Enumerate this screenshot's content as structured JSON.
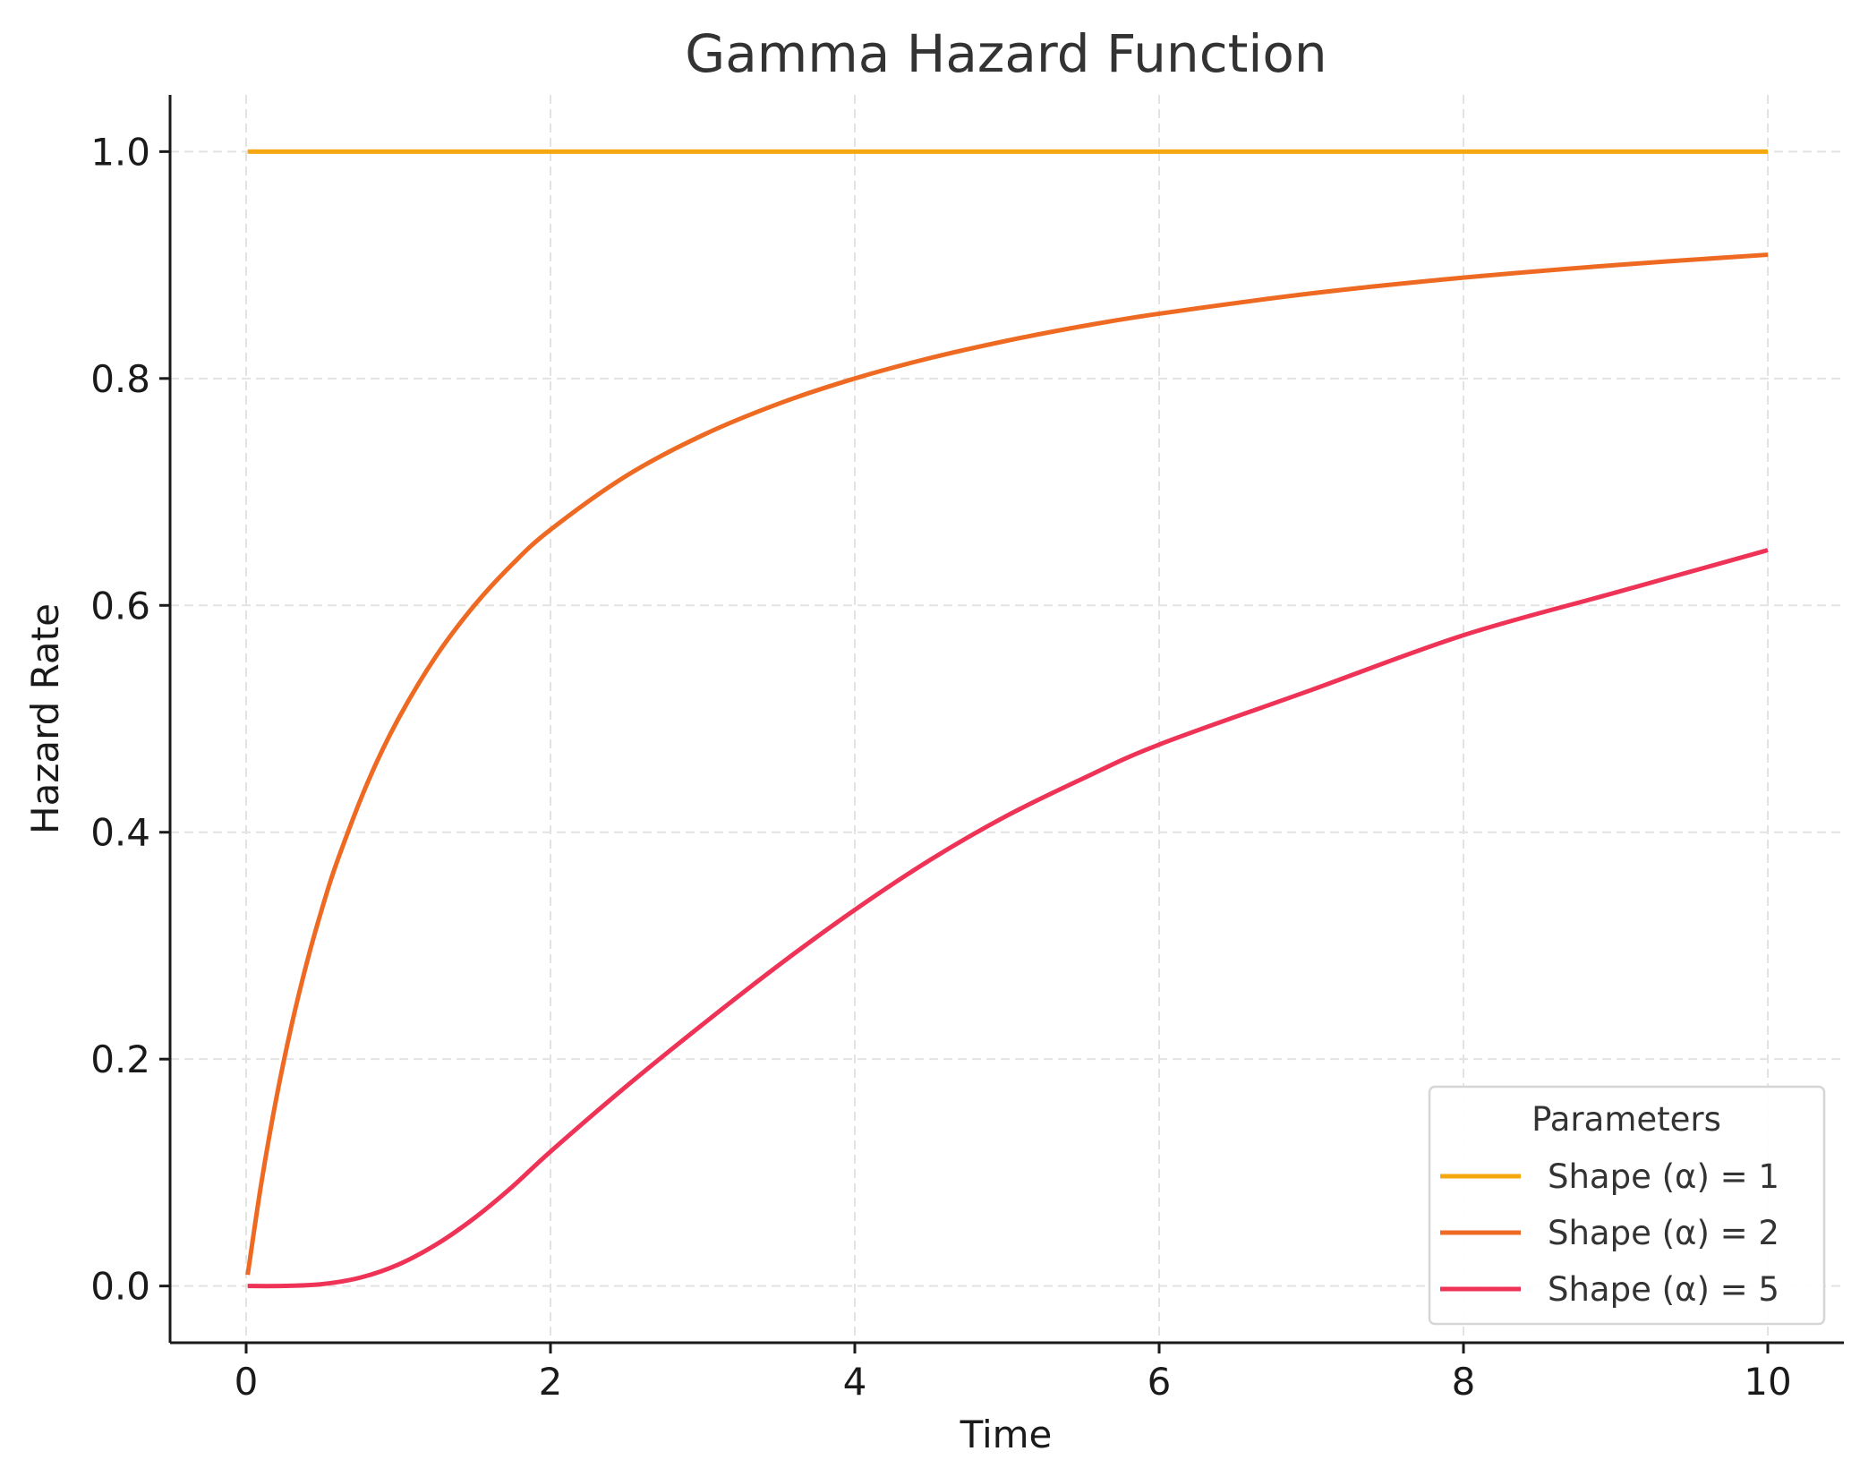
{
  "chart_data": {
    "type": "line",
    "title": "Gamma Hazard Function",
    "xlabel": "Time",
    "ylabel": "Hazard Rate",
    "xlim": [
      -0.5,
      10.5
    ],
    "ylim": [
      -0.05,
      1.05
    ],
    "xticks": [
      0,
      2,
      4,
      6,
      8,
      10
    ],
    "xtick_labels": [
      "0",
      "2",
      "4",
      "6",
      "8",
      "10"
    ],
    "yticks": [
      0.0,
      0.2,
      0.4,
      0.6,
      0.8,
      1.0
    ],
    "ytick_labels": [
      "0.0",
      "0.2",
      "0.4",
      "0.6",
      "0.8",
      "1.0"
    ],
    "grid": true,
    "legend": {
      "title": "Parameters",
      "position": "lower-right"
    },
    "series": [
      {
        "name": "Shape (α) = 1",
        "color": "#F5A70F",
        "x": [
          0.01,
          1,
          2,
          3,
          4,
          5,
          6,
          7,
          8,
          9,
          10
        ],
        "y": [
          1.0,
          1.0,
          1.0,
          1.0,
          1.0,
          1.0,
          1.0,
          1.0,
          1.0,
          1.0,
          1.0
        ]
      },
      {
        "name": "Shape (α) = 2",
        "color": "#EE6A22",
        "x": [
          0.01,
          0.1,
          0.2,
          0.3,
          0.4,
          0.5,
          0.6,
          0.8,
          1.0,
          1.25,
          1.5,
          1.75,
          2.0,
          2.5,
          3.0,
          3.5,
          4.0,
          4.5,
          5.0,
          5.5,
          6.0,
          7.0,
          8.0,
          9.0,
          10.0
        ],
        "y": [
          0.0099,
          0.0909,
          0.1667,
          0.2308,
          0.2857,
          0.3333,
          0.375,
          0.4444,
          0.5,
          0.5556,
          0.6,
          0.6364,
          0.6667,
          0.7143,
          0.75,
          0.7778,
          0.8,
          0.8182,
          0.8333,
          0.8462,
          0.8571,
          0.875,
          0.8889,
          0.9,
          0.9091
        ]
      },
      {
        "name": "Shape (α) = 5",
        "color": "#EE3356",
        "x": [
          0.01,
          0.25,
          0.5,
          0.75,
          1.0,
          1.25,
          1.5,
          1.75,
          2.0,
          2.5,
          3.0,
          3.5,
          4.0,
          4.5,
          5.0,
          5.5,
          6.0,
          7.0,
          8.0,
          9.0,
          10.0
        ],
        "y": [
          0.0,
          0.0001,
          0.0017,
          0.0074,
          0.0189,
          0.0367,
          0.0599,
          0.0876,
          0.1185,
          0.1762,
          0.2306,
          0.2828,
          0.3316,
          0.376,
          0.4146,
          0.4474,
          0.4773,
          0.5254,
          0.5737,
          0.6113,
          0.6487
        ]
      }
    ]
  }
}
